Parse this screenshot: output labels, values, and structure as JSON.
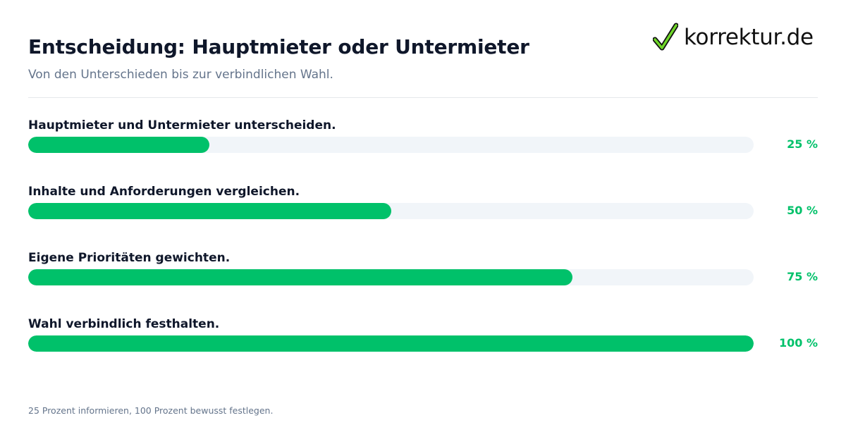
{
  "header": {
    "title": "Entscheidung: Hauptmieter oder Untermieter",
    "subtitle": "Von den Unterschieden bis zur verbindlichen Wahl."
  },
  "logo": {
    "text": "korrektur.de",
    "icon": "checkmark-icon",
    "check_color": "#6fd629"
  },
  "colors": {
    "accent": "#00c16a",
    "track": "#f1f5f9",
    "title": "#0f172a",
    "muted": "#64748b"
  },
  "chart_data": {
    "type": "bar",
    "orientation": "horizontal",
    "categories": [
      "Hauptmieter und Untermieter unterscheiden.",
      "Inhalte und Anforderungen vergleichen.",
      "Eigene Prioritäten gewichten.",
      "Wahl verbindlich festhalten."
    ],
    "values": [
      25,
      50,
      75,
      100
    ],
    "value_labels": [
      "25 %",
      "50 %",
      "75 %",
      "100 %"
    ],
    "xlim": [
      0,
      100
    ],
    "grid": false
  },
  "footnote": "25 Prozent informieren, 100 Prozent bewusst festlegen."
}
